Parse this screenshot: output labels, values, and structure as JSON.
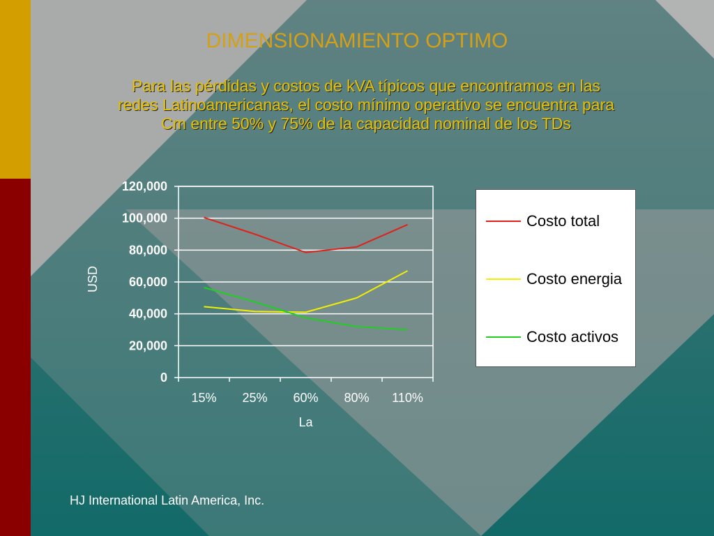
{
  "title": "DIMENSIONAMIENTO  OPTIMO",
  "subtitle_lines": [
    "Para las pérdidas y costos de kVA típicos que encontramos en las",
    "redes Latinoamericanas, el costo mínimo operativo se encuentra para",
    "Cm entre 50% y 75% de la capacidad nominal de los TDs"
  ],
  "footer": "HJ International Latin America, Inc.",
  "chart_data": {
    "type": "line",
    "categories": [
      "15%",
      "25%",
      "60%",
      "80%",
      "110%"
    ],
    "xlabel": "La",
    "ylabel": "USD",
    "ylim": [
      0,
      120000
    ],
    "yticks": [
      "0",
      "20,000",
      "40,000",
      "60,000",
      "80,000",
      "100,000",
      "120,000"
    ],
    "grid": true,
    "legend_position": "right",
    "series": [
      {
        "name": "Costo total",
        "color": "#e0201a",
        "values": [
          100500,
          90000,
          78500,
          82000,
          96000
        ]
      },
      {
        "name": "Costo energia",
        "color": "#f0f000",
        "values": [
          44500,
          41500,
          41000,
          50000,
          67000
        ]
      },
      {
        "name": "Costo activos",
        "color": "#20d020",
        "values": [
          56500,
          47500,
          37500,
          32000,
          30000
        ]
      }
    ]
  }
}
